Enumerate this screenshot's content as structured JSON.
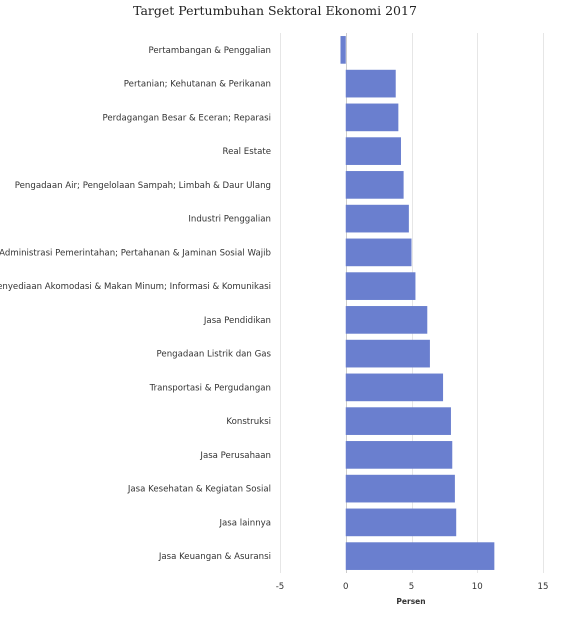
{
  "chart_data": {
    "type": "bar",
    "orientation": "horizontal",
    "title": "Target Pertumbuhan Sektoral Ekonomi 2017",
    "xlabel": "Persen",
    "ylabel": "",
    "xlim": [
      -5,
      15
    ],
    "xticks": [
      -5,
      0,
      5,
      10,
      15
    ],
    "grid": true,
    "bar_color": "#6a7fcf",
    "categories": [
      "Pertambangan & Penggalian",
      "Pertanian; Kehutanan & Perikanan",
      "Perdagangan Besar & Eceran; Reparasi",
      "Real Estate",
      "Pengadaan Air; Pengelolaan Sampah; Limbah & Daur Ulang",
      "Industri Penggalian",
      "Administrasi Pemerintahan; Pertahanan & Jaminan Sosial Wajib",
      "Penyediaan Akomodasi & Makan Minum; Informasi & Komunikasi",
      "Jasa Pendidikan",
      "Pengadaan Listrik dan Gas",
      "Transportasi & Pergudangan",
      "Konstruksi",
      "Jasa Perusahaan",
      "Jasa Kesehatan & Kegiatan Sosial",
      "Jasa lainnya",
      "Jasa Keuangan & Asuransi"
    ],
    "values": [
      -0.4,
      3.8,
      4.0,
      4.2,
      4.4,
      4.8,
      5.0,
      5.3,
      6.2,
      6.4,
      7.4,
      8.0,
      8.1,
      8.3,
      8.4,
      11.3
    ]
  }
}
